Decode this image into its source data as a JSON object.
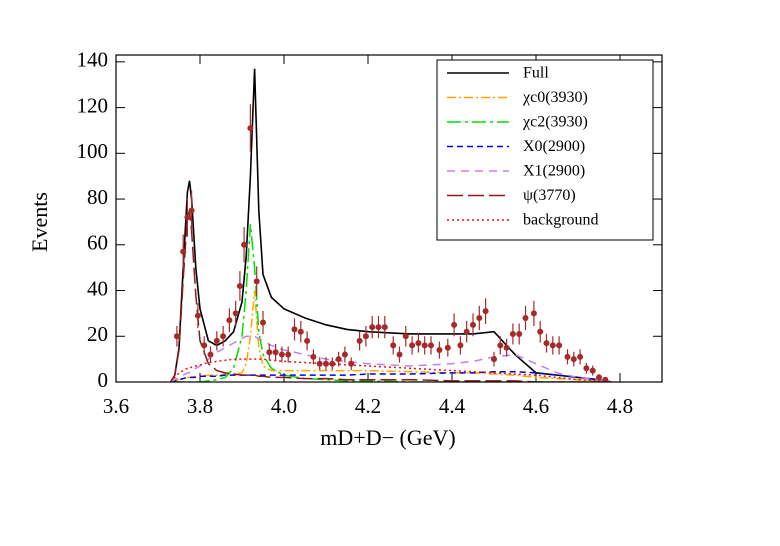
{
  "chart_data": {
    "type": "line",
    "xlabel": "mD+D− (GeV)",
    "ylabel": "Events",
    "xlim": [
      3.6,
      4.9
    ],
    "ylim": [
      0,
      143
    ],
    "xticks": [
      3.6,
      3.8,
      {
        "value": 4,
        "label": "4.0"
      },
      4.2,
      4.4,
      4.6,
      4.8
    ],
    "yticks": [
      0,
      20,
      40,
      60,
      80,
      100,
      120,
      140
    ],
    "legend": "upper right",
    "x": [
      3.73,
      3.74,
      3.75,
      3.76,
      3.77,
      3.775,
      3.78,
      3.79,
      3.8,
      3.82,
      3.84,
      3.86,
      3.88,
      3.9,
      3.91,
      3.92,
      3.93,
      3.94,
      3.95,
      3.97,
      4.0,
      4.05,
      4.1,
      4.15,
      4.2,
      4.3,
      4.4,
      4.45,
      4.5,
      4.55,
      4.6,
      4.65,
      4.7,
      4.75,
      4.78
    ],
    "series": [
      {
        "name": "Full",
        "color": "#000000",
        "dash": "none",
        "values": [
          0,
          3,
          15,
          50,
          83,
          88,
          80,
          50,
          32,
          18,
          16,
          18,
          22,
          35,
          55,
          90,
          137,
          75,
          47,
          37,
          32,
          28,
          25,
          23,
          22,
          21,
          21,
          21,
          22,
          12,
          4,
          3,
          2,
          1,
          0
        ]
      },
      {
        "name": "χc0(3930)",
        "color": "#ffa500",
        "dash": "9,3,2,3",
        "values": [
          0,
          0.5,
          1,
          1.5,
          2,
          2,
          2,
          2.5,
          2.5,
          3,
          3,
          3.5,
          3.5,
          4,
          8,
          20,
          40,
          15,
          7,
          5,
          5,
          5,
          5,
          5,
          5,
          4.5,
          4,
          4,
          3.5,
          3,
          2,
          1.5,
          1,
          0.5,
          0
        ]
      },
      {
        "name": "χc2(3930)",
        "color": "#00e000",
        "dash": "14,4,3,4",
        "values": [
          0,
          0,
          0,
          0,
          0,
          0,
          0,
          0,
          0,
          0.5,
          1,
          2,
          6,
          20,
          40,
          69,
          50,
          22,
          12,
          6,
          3,
          1.5,
          1,
          0.5,
          0.5,
          0,
          0,
          0,
          0,
          0,
          0,
          0,
          0,
          0,
          0
        ]
      },
      {
        "name": "X0(2900)",
        "color": "#0000dd",
        "dash": "6,4",
        "values": [
          0,
          0.5,
          1,
          1.5,
          2,
          2,
          2,
          2,
          2.5,
          2.5,
          2.5,
          3,
          3,
          3,
          3,
          3,
          3,
          3,
          3,
          3,
          3,
          3,
          3,
          3,
          3.5,
          3.5,
          4,
          4,
          4.5,
          4.5,
          4,
          3,
          2,
          1,
          0
        ]
      },
      {
        "name": "X1(2900)",
        "color": "#c080f0",
        "dash": "8,6",
        "values": [
          0,
          1,
          2,
          3,
          4,
          4,
          5,
          6,
          7,
          10,
          13,
          15,
          17,
          19,
          20,
          20,
          20,
          19,
          18,
          16,
          14,
          12,
          10,
          9,
          8,
          7,
          8,
          9,
          11,
          12,
          8,
          4,
          2,
          1,
          0
        ]
      },
      {
        "name": "ψ(3770)",
        "color": "#8b1a1a",
        "dash": "16,5",
        "values": [
          0,
          3,
          14,
          45,
          72,
          75,
          66,
          38,
          18,
          8,
          5,
          4,
          3.5,
          3,
          3,
          3,
          3,
          2.5,
          2.5,
          2,
          2,
          1.5,
          1.5,
          1,
          1,
          1,
          0.5,
          0.5,
          0.5,
          0.5,
          0,
          0,
          0,
          0,
          0
        ]
      },
      {
        "name": "background",
        "color": "#ee1111",
        "dash": "2,3",
        "values": [
          0,
          2,
          4,
          5,
          6,
          6,
          6.5,
          7,
          7.5,
          8.5,
          9,
          9.5,
          10,
          10,
          10,
          10,
          10,
          10,
          10,
          9.5,
          9,
          8.5,
          8,
          7.5,
          7,
          6,
          5,
          4.5,
          4,
          3.5,
          3,
          2,
          1,
          0.5,
          0
        ]
      }
    ],
    "points": {
      "color": "#a52a2a",
      "x": [
        3.745,
        3.76,
        3.77,
        3.78,
        3.795,
        3.81,
        3.825,
        3.84,
        3.855,
        3.87,
        3.885,
        3.895,
        3.905,
        3.92,
        3.935,
        3.95,
        3.965,
        3.98,
        3.995,
        4.01,
        4.025,
        4.04,
        4.055,
        4.07,
        4.085,
        4.1,
        4.115,
        4.13,
        4.145,
        4.16,
        4.18,
        4.195,
        4.21,
        4.225,
        4.24,
        4.26,
        4.275,
        4.29,
        4.305,
        4.32,
        4.335,
        4.35,
        4.37,
        4.39,
        4.405,
        4.42,
        4.435,
        4.45,
        4.465,
        4.48,
        4.5,
        4.515,
        4.53,
        4.545,
        4.56,
        4.575,
        4.595,
        4.61,
        4.625,
        4.64,
        4.655,
        4.675,
        4.69,
        4.705,
        4.72,
        4.735,
        4.75,
        4.765
      ],
      "values": [
        20,
        57,
        72,
        75,
        29,
        16,
        12,
        18,
        20,
        27,
        30,
        42,
        60,
        111,
        44,
        26,
        13,
        13,
        12,
        12,
        23,
        22,
        18,
        11,
        8,
        8,
        8,
        10,
        12,
        8,
        18,
        20,
        24,
        24,
        24,
        16,
        12,
        20,
        16,
        17,
        16,
        16,
        14,
        15,
        25,
        16,
        22,
        25,
        28,
        31,
        10,
        16,
        15,
        21,
        21,
        28,
        30,
        22,
        17,
        16,
        16,
        11,
        10,
        11,
        6,
        5,
        2,
        1
      ],
      "errors": [
        4.5,
        7.5,
        8.5,
        8.7,
        5.4,
        4,
        3.5,
        4.2,
        4.5,
        5.2,
        5.5,
        6.5,
        7.7,
        10.5,
        6.6,
        5.1,
        3.6,
        3.6,
        3.5,
        3.5,
        4.8,
        4.7,
        4.2,
        3.3,
        2.8,
        2.8,
        2.8,
        3.2,
        3.5,
        2.8,
        4.2,
        4.5,
        4.9,
        4.9,
        4.9,
        4,
        3.5,
        4.5,
        4,
        4.1,
        4,
        4,
        3.7,
        3.9,
        5,
        4,
        4.7,
        5,
        5.3,
        5.6,
        3.2,
        4,
        3.9,
        4.6,
        4.6,
        5.3,
        5.5,
        4.7,
        4.1,
        4,
        4,
        3.3,
        3.2,
        3.3,
        2.4,
        2.2,
        1.4,
        1
      ]
    }
  }
}
